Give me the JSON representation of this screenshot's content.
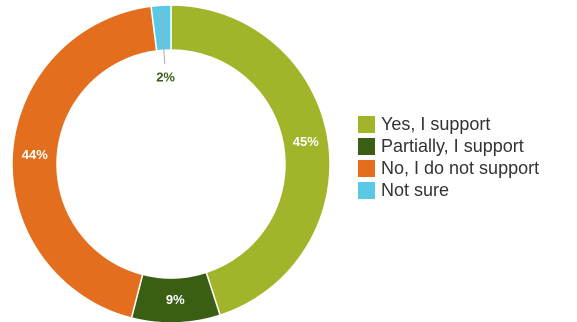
{
  "chart_data": {
    "type": "pie",
    "donut": true,
    "title": "",
    "legend_position": "right",
    "series": [
      {
        "name": "Yes, I support",
        "value": 45,
        "label": "45%",
        "color": "#a2b429"
      },
      {
        "name": "Partially, I support",
        "value": 9,
        "label": "9%",
        "color": "#3b5e15"
      },
      {
        "name": "No, I do not support",
        "value": 44,
        "label": "44%",
        "color": "#e36f1e"
      },
      {
        "name": "Not sure",
        "value": 2,
        "label": "2%",
        "color": "#5bc8e6"
      }
    ]
  }
}
